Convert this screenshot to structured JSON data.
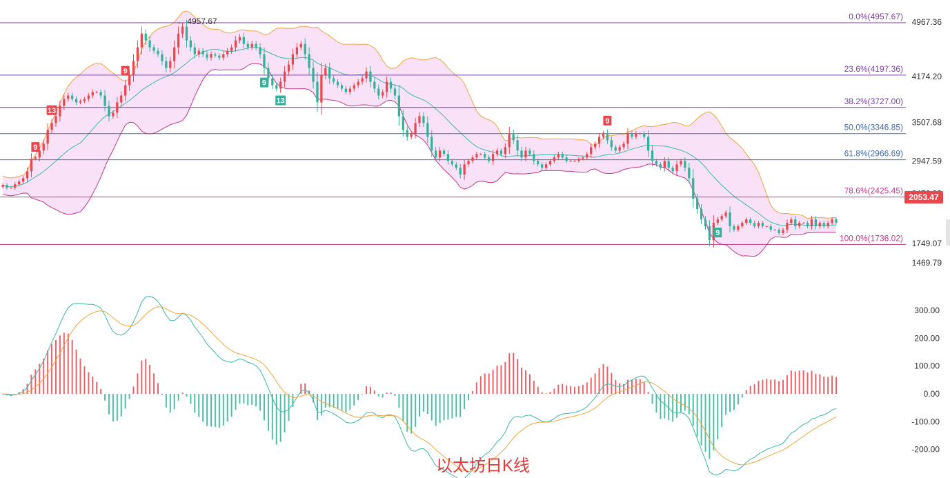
{
  "chart_data": {
    "type": "candlestick",
    "caption": "以太坊日K线",
    "price_axis": {
      "ticks": [
        "4967.36",
        "4174.20",
        "3507.68",
        "2947.59",
        "2476.93",
        "1749.07",
        "1469.79"
      ],
      "tick_values": [
        4967.36,
        4174.2,
        3507.68,
        2947.59,
        2476.93,
        1749.07,
        1469.79
      ]
    },
    "last_price": {
      "label": "2053.47",
      "value": 2053.47,
      "color": "#e8474d"
    },
    "high_marker": {
      "label": "← 4957.67",
      "value": 4957.67
    },
    "fibonacci": [
      {
        "label": "0.0%(4957.67)",
        "value": 4957.67,
        "color": "#7b3fa0"
      },
      {
        "label": "23.6%(4197.36)",
        "value": 4197.36,
        "color": "#7b3fa0"
      },
      {
        "label": "38.2%(3727.00)",
        "value": 3727.0,
        "color": "#7b3fa0"
      },
      {
        "label": "50.0%(3346.85)",
        "value": 3346.85,
        "color": "#3f6fb0"
      },
      {
        "label": "61.8%(2966.69)",
        "value": 2966.69,
        "color": "#3f6fb0"
      },
      {
        "label": "78.6%(2425.45)",
        "value": 2425.45,
        "color": "#c0398a"
      },
      {
        "label": "100.0%(1736.02)",
        "value": 1736.02,
        "color": "#c0398a"
      }
    ],
    "td_markers": [
      {
        "label": "9",
        "bar": 8,
        "kind": "up"
      },
      {
        "label": "13",
        "bar": 12,
        "kind": "up"
      },
      {
        "label": "9",
        "bar": 30,
        "kind": "up"
      },
      {
        "label": "9",
        "bar": 64,
        "kind": "down"
      },
      {
        "label": "13",
        "bar": 68,
        "kind": "down"
      },
      {
        "label": "9",
        "bar": 148,
        "kind": "up"
      },
      {
        "label": "9",
        "bar": 175,
        "kind": "down"
      }
    ],
    "closes": [
      2600,
      2560,
      2560,
      2610,
      2650,
      2700,
      2800,
      2980,
      3000,
      3100,
      3200,
      3400,
      3500,
      3600,
      3750,
      3850,
      3900,
      3850,
      3800,
      3820,
      3850,
      3900,
      3950,
      3950,
      3900,
      3750,
      3600,
      3650,
      3800,
      3900,
      4050,
      4200,
      4400,
      4600,
      4800,
      4700,
      4600,
      4550,
      4500,
      4400,
      4300,
      4400,
      4600,
      4800,
      4900,
      4700,
      4600,
      4500,
      4550,
      4500,
      4450,
      4500,
      4480,
      4450,
      4500,
      4550,
      4600,
      4700,
      4750,
      4650,
      4600,
      4650,
      4600,
      4500,
      4300,
      4150,
      4050,
      4000,
      4100,
      4250,
      4350,
      4500,
      4600,
      4650,
      4500,
      4300,
      4100,
      3800,
      4200,
      4300,
      4150,
      4100,
      4050,
      4000,
      3950,
      4000,
      4050,
      4100,
      4150,
      4250,
      4100,
      4000,
      3900,
      3950,
      4100,
      4000,
      3900,
      3600,
      3400,
      3300,
      3350,
      3500,
      3600,
      3500,
      3300,
      3100,
      3000,
      3100,
      3050,
      2950,
      2900,
      2850,
      2750,
      2900,
      2950,
      3000,
      3050,
      3050,
      3000,
      2950,
      3050,
      3100,
      3050,
      3150,
      3350,
      3250,
      3100,
      3000,
      3100,
      3050,
      2950,
      2900,
      2850,
      2900,
      2950,
      3000,
      3050,
      3000,
      2950,
      2950,
      2950,
      2980,
      3000,
      3050,
      3150,
      3200,
      3300,
      3350,
      3250,
      3150,
      3100,
      3150,
      3200,
      3350,
      3300,
      3350,
      3350,
      3300,
      3100,
      2950,
      2900,
      2850,
      2950,
      2850,
      2800,
      2900,
      2950,
      2850,
      2700,
      2400,
      2250,
      2100,
      2000,
      1800,
      2050,
      2100,
      2150,
      2200,
      2000,
      1950,
      2000,
      2050,
      2100,
      2050,
      2000,
      2050,
      2000,
      2000,
      1950,
      1950,
      1900,
      1950,
      2050,
      2100,
      2000,
      2050,
      2050,
      2000,
      2100,
      2000,
      2050,
      2000,
      2050,
      2100,
      2053
    ]
  }
}
